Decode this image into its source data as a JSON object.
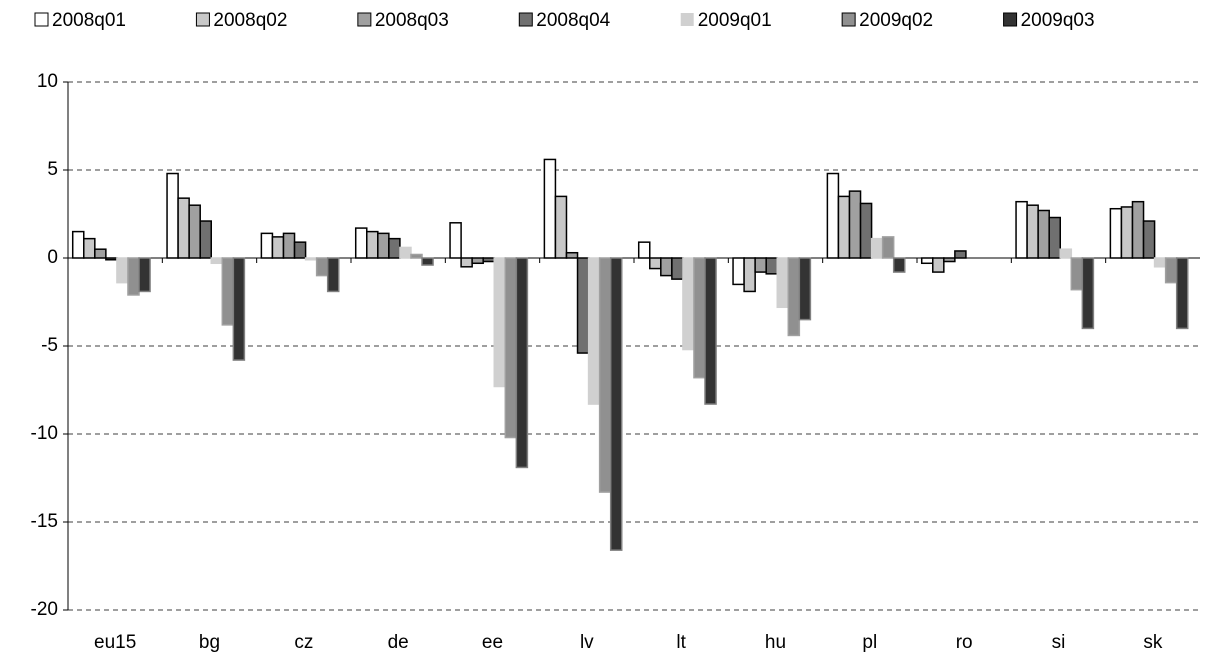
{
  "chart_data": {
    "type": "bar",
    "categories": [
      "eu15",
      "bg",
      "cz",
      "de",
      "ee",
      "lv",
      "lt",
      "hu",
      "pl",
      "ro",
      "si",
      "sk"
    ],
    "series": [
      {
        "name": "2008q01",
        "color": "#ffffff",
        "edge": "#000000",
        "values": [
          1.5,
          4.8,
          1.4,
          1.7,
          2.0,
          5.6,
          0.9,
          -1.5,
          4.8,
          -0.3,
          3.2,
          2.8
        ]
      },
      {
        "name": "2008q02",
        "color": "#c8c8c8",
        "edge": "#000000",
        "values": [
          1.1,
          3.4,
          1.2,
          1.5,
          -0.5,
          3.5,
          -0.6,
          -1.9,
          3.5,
          -0.8,
          3.0,
          2.9
        ]
      },
      {
        "name": "2008q03",
        "color": "#a0a0a0",
        "edge": "#000000",
        "values": [
          0.5,
          3.0,
          1.4,
          1.4,
          -0.3,
          0.3,
          -1.0,
          -0.8,
          3.8,
          -0.2,
          2.7,
          3.2
        ]
      },
      {
        "name": "2008q04",
        "color": "#707070",
        "edge": "#000000",
        "values": [
          -0.1,
          2.1,
          0.9,
          1.1,
          -0.2,
          -5.4,
          -1.2,
          -0.9,
          3.1,
          0.4,
          2.3,
          2.1
        ]
      },
      {
        "name": "2009q01",
        "color": "#d0d0d0",
        "edge": "#d0d0d0",
        "values": [
          -1.4,
          -0.3,
          -0.1,
          0.6,
          -7.3,
          -8.3,
          -5.2,
          -2.8,
          1.1,
          null,
          0.5,
          -0.5
        ]
      },
      {
        "name": "2009q02",
        "color": "#909090",
        "edge": "#a0a0a0",
        "values": [
          -2.1,
          -3.8,
          -1.0,
          0.2,
          -10.2,
          -13.3,
          -6.8,
          -4.4,
          1.2,
          null,
          -1.8,
          -1.4
        ]
      },
      {
        "name": "2009q03",
        "color": "#333333",
        "edge": "#808080",
        "values": [
          -1.9,
          -5.8,
          -1.9,
          -0.4,
          -11.9,
          -16.6,
          -8.3,
          -3.5,
          -0.8,
          null,
          -4.0,
          -4.0
        ]
      }
    ],
    "ylim": [
      -20,
      10
    ],
    "yticks": [
      -20,
      -15,
      -10,
      -5,
      0,
      5,
      10
    ],
    "grid": true,
    "legend": "top"
  }
}
